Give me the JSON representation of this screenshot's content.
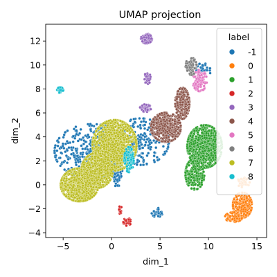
{
  "chart_data": {
    "type": "scatter",
    "title": "UMAP projection",
    "xlabel": "dim_1",
    "ylabel": "dim_2",
    "xlim": [
      -6.8,
      16.0
    ],
    "ylim": [
      -4.4,
      13.4
    ],
    "xticks": [
      -5,
      0,
      5,
      10,
      15
    ],
    "yticks": [
      -4,
      -2,
      0,
      2,
      4,
      6,
      8,
      10,
      12
    ],
    "grid": false,
    "legend": {
      "title": "label",
      "placement": "top-right",
      "entries": [
        "-1",
        "0",
        "1",
        "2",
        "3",
        "4",
        "5",
        "6",
        "7",
        "8"
      ]
    },
    "colors": {
      "-1": "#1f77b4",
      "0": "#ff7f0e",
      "1": "#2ca02c",
      "2": "#d62728",
      "3": "#9467bd",
      "4": "#8c564b",
      "5": "#e377c2",
      "6": "#7f7f7f",
      "7": "#bcbd22",
      "8": "#17becf"
    },
    "clusters": [
      {
        "label": "-1",
        "cx": -2.0,
        "cy": 2.8,
        "sx": 2.4,
        "sy": 1.4,
        "n": 420,
        "shape": "ellipse"
      },
      {
        "label": "-1",
        "cx": 3.0,
        "cy": 3.6,
        "sx": 1.8,
        "sy": 1.2,
        "n": 260,
        "shape": "ellipse"
      },
      {
        "label": "-1",
        "cx": 0.5,
        "cy": 0.8,
        "sx": 0.4,
        "sy": 0.6,
        "n": 60,
        "shape": "ellipse"
      },
      {
        "label": "-1",
        "cx": 4.7,
        "cy": -2.3,
        "sx": 0.35,
        "sy": 0.25,
        "n": 30,
        "shape": "ellipse"
      },
      {
        "label": "-1",
        "cx": 9.4,
        "cy": 9.5,
        "sx": 0.5,
        "sy": 0.4,
        "n": 30,
        "shape": "ellipse"
      },
      {
        "label": "7",
        "cx": -3.3,
        "cy": 0.0,
        "sx": 1.2,
        "sy": 0.85,
        "n": 900,
        "shape": "ellipse"
      },
      {
        "label": "7",
        "cx": 0.3,
        "cy": 3.3,
        "sx": 1.4,
        "sy": 1.3,
        "n": 1100,
        "shape": "ellipse"
      },
      {
        "label": "7",
        "cx": -1.5,
        "cy": 1.2,
        "sx": 1.0,
        "sy": 0.9,
        "n": 500,
        "shape": "ellipse"
      },
      {
        "label": "4",
        "cx": 5.6,
        "cy": 4.8,
        "sx": 0.95,
        "sy": 0.75,
        "n": 500,
        "shape": "ellipse"
      },
      {
        "label": "4",
        "cx": 7.3,
        "cy": 6.8,
        "sx": 0.45,
        "sy": 0.8,
        "n": 200,
        "shape": "ellipse"
      },
      {
        "label": "1",
        "cx": 9.6,
        "cy": 3.2,
        "sx": 1.1,
        "sy": 1.1,
        "n": 800,
        "shape": "ellipse"
      },
      {
        "label": "1",
        "cx": 8.6,
        "cy": 0.9,
        "sx": 0.6,
        "sy": 0.8,
        "n": 220,
        "shape": "ellipse"
      },
      {
        "label": "0",
        "cx": 13.5,
        "cy": -1.7,
        "sx": 0.6,
        "sy": 0.65,
        "n": 240,
        "shape": "ellipse"
      },
      {
        "label": "0",
        "cx": 12.6,
        "cy": -2.7,
        "sx": 0.55,
        "sy": 0.25,
        "n": 70,
        "shape": "ellipse"
      },
      {
        "label": "0",
        "cx": 13.6,
        "cy": 0.2,
        "sx": 0.4,
        "sy": 0.25,
        "n": 40,
        "shape": "ellipse"
      },
      {
        "label": "3",
        "cx": 3.6,
        "cy": 12.2,
        "sx": 0.35,
        "sy": 0.25,
        "n": 90,
        "shape": "ellipse"
      },
      {
        "label": "3",
        "cx": 3.7,
        "cy": 8.9,
        "sx": 0.2,
        "sy": 0.3,
        "n": 40,
        "shape": "ellipse"
      },
      {
        "label": "3",
        "cx": 3.5,
        "cy": 6.4,
        "sx": 0.35,
        "sy": 0.2,
        "n": 40,
        "shape": "ellipse"
      },
      {
        "label": "5",
        "cx": 9.1,
        "cy": 8.7,
        "sx": 0.45,
        "sy": 0.55,
        "n": 110,
        "shape": "ellipse"
      },
      {
        "label": "6",
        "cx": 8.2,
        "cy": 9.9,
        "sx": 0.35,
        "sy": 0.45,
        "n": 60,
        "shape": "ellipse"
      },
      {
        "label": "8",
        "cx": -5.3,
        "cy": 7.9,
        "sx": 0.2,
        "sy": 0.15,
        "n": 35,
        "shape": "ellipse"
      },
      {
        "label": "8",
        "cx": 1.8,
        "cy": 2.1,
        "sx": 0.3,
        "sy": 0.65,
        "n": 90,
        "shape": "ellipse"
      },
      {
        "label": "2",
        "cx": 1.6,
        "cy": -3.1,
        "sx": 0.25,
        "sy": 0.2,
        "n": 35,
        "shape": "ellipse"
      },
      {
        "label": "2",
        "cx": 0.9,
        "cy": -2.1,
        "sx": 0.1,
        "sy": 0.2,
        "n": 15,
        "shape": "ellipse"
      }
    ]
  }
}
